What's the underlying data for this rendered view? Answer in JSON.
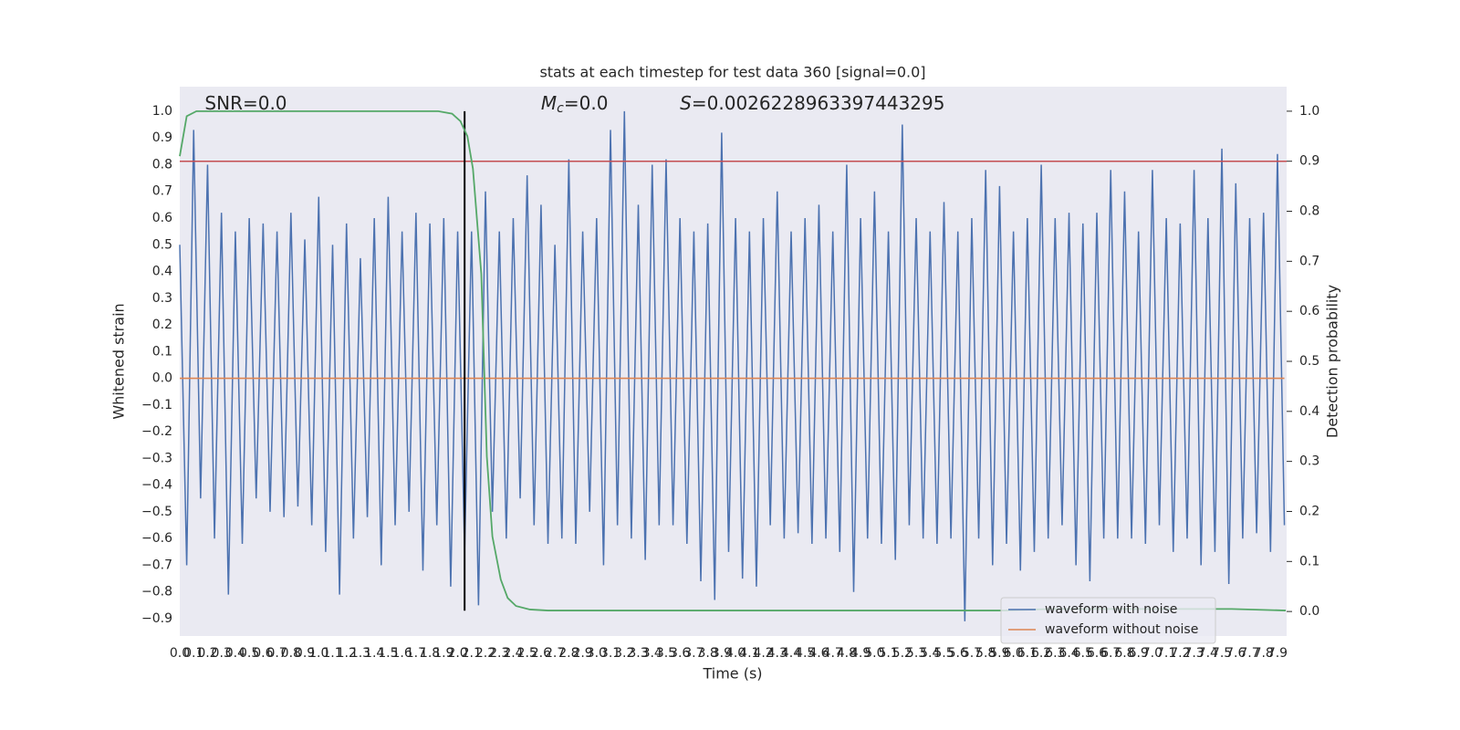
{
  "chart_data": {
    "type": "line",
    "title": "stats at each timestep for test data 360 [signal=0.0]",
    "x_label": "Time (s)",
    "y_label": "Whitened strain",
    "y2_label": "Detection probability",
    "annotations": [
      {
        "text": "SNR=0.0",
        "x": 0.18
      },
      {
        "symbol": "M",
        "subscript": "c",
        "text": "=0.0",
        "x": 2.6
      },
      {
        "symbol": "S",
        "text": "=0.0026228963397443295",
        "x": 3.6
      }
    ],
    "xlim": [
      0,
      7.966
    ],
    "ylim": [
      -0.965,
      1.092
    ],
    "y2lim": [
      -0.049,
      1.049
    ],
    "grid": true,
    "legend": "lower right",
    "x": [
      0,
      0.05,
      0.1,
      0.15,
      0.2,
      0.25,
      0.3,
      0.35,
      0.4,
      0.45,
      0.5,
      0.55,
      0.6,
      0.65,
      0.7,
      0.75,
      0.8,
      0.85,
      0.9,
      0.95,
      1.0,
      1.05,
      1.1,
      1.15,
      1.2,
      1.25,
      1.3,
      1.35,
      1.4,
      1.45,
      1.5,
      1.55,
      1.6,
      1.65,
      1.7,
      1.75,
      1.8,
      1.85,
      1.9,
      1.95,
      2.0,
      2.05,
      2.1,
      2.15,
      2.2,
      2.25,
      2.3,
      2.35,
      2.4,
      2.45,
      2.5,
      2.55,
      2.6,
      2.65,
      2.7,
      2.75,
      2.8,
      2.85,
      2.9,
      2.95,
      3.0,
      3.05,
      3.1,
      3.15,
      3.2,
      3.25,
      3.3,
      3.35,
      3.4,
      3.45,
      3.5,
      3.55,
      3.6,
      3.65,
      3.7,
      3.75,
      3.8,
      3.85,
      3.9,
      3.95,
      4.0,
      4.05,
      4.1,
      4.15,
      4.2,
      4.25,
      4.3,
      4.35,
      4.4,
      4.45,
      4.5,
      4.55,
      4.6,
      4.65,
      4.7,
      4.75,
      4.8,
      4.85,
      4.9,
      4.95,
      5.0,
      5.05,
      5.1,
      5.15,
      5.2,
      5.25,
      5.3,
      5.35,
      5.4,
      5.45,
      5.5,
      5.55,
      5.6,
      5.65,
      5.7,
      5.75,
      5.8,
      5.85,
      5.9,
      5.95,
      6.0,
      6.05,
      6.1,
      6.15,
      6.2,
      6.25,
      6.3,
      6.35,
      6.4,
      6.45,
      6.5,
      6.55,
      6.6,
      6.65,
      6.7,
      6.75,
      6.8,
      6.85,
      6.9,
      6.95,
      7.0,
      7.05,
      7.1,
      7.15,
      7.2,
      7.25,
      7.3,
      7.35,
      7.4,
      7.45,
      7.5,
      7.55,
      7.6,
      7.65,
      7.7,
      7.75,
      7.8,
      7.85,
      7.9,
      7.95
    ],
    "series": [
      {
        "name": "waveform with noise",
        "color": "#4c72b0",
        "values": [
          0.5,
          -0.7,
          0.93,
          -0.45,
          0.8,
          -0.6,
          0.62,
          -0.81,
          0.55,
          -0.62,
          0.6,
          -0.45,
          0.58,
          -0.5,
          0.55,
          -0.52,
          0.62,
          -0.48,
          0.52,
          -0.55,
          0.68,
          -0.65,
          0.5,
          -0.81,
          0.58,
          -0.6,
          0.45,
          -0.52,
          0.6,
          -0.7,
          0.68,
          -0.55,
          0.55,
          -0.5,
          0.62,
          -0.72,
          0.58,
          -0.55,
          0.6,
          -0.78,
          0.55,
          -0.65,
          0.55,
          -0.85,
          0.7,
          -0.5,
          0.55,
          -0.6,
          0.6,
          -0.45,
          0.76,
          -0.55,
          0.65,
          -0.62,
          0.5,
          -0.6,
          0.82,
          -0.62,
          0.55,
          -0.5,
          0.6,
          -0.7,
          0.93,
          -0.55,
          1.0,
          -0.6,
          0.65,
          -0.68,
          0.8,
          -0.55,
          0.82,
          -0.55,
          0.6,
          -0.62,
          0.55,
          -0.76,
          0.58,
          -0.83,
          0.92,
          -0.65,
          0.6,
          -0.75,
          0.55,
          -0.78,
          0.6,
          -0.55,
          0.7,
          -0.6,
          0.55,
          -0.58,
          0.6,
          -0.62,
          0.65,
          -0.6,
          0.55,
          -0.65,
          0.8,
          -0.8,
          0.6,
          -0.6,
          0.7,
          -0.62,
          0.55,
          -0.68,
          0.95,
          -0.55,
          0.6,
          -0.6,
          0.55,
          -0.62,
          0.66,
          -0.6,
          0.55,
          -0.91,
          0.6,
          -0.6,
          0.78,
          -0.7,
          0.72,
          -0.62,
          0.55,
          -0.72,
          0.6,
          -0.65,
          0.8,
          -0.6,
          0.6,
          -0.55,
          0.62,
          -0.7,
          0.58,
          -0.76,
          0.62,
          -0.6,
          0.78,
          -0.6,
          0.7,
          -0.6,
          0.55,
          -0.62,
          0.78,
          -0.55,
          0.6,
          -0.65,
          0.58,
          -0.6,
          0.78,
          -0.7,
          0.6,
          -0.65,
          0.86,
          -0.77,
          0.73,
          -0.6,
          0.6,
          -0.58,
          0.62,
          -0.65,
          0.84,
          -0.55
        ]
      },
      {
        "name": "waveform without noise",
        "color": "#dd8452",
        "values": [
          0,
          0,
          0,
          0,
          0,
          0,
          0,
          0,
          0,
          0,
          0,
          0,
          0,
          0,
          0,
          0,
          0,
          0,
          0,
          0,
          0,
          0,
          0,
          0,
          0,
          0,
          0,
          0,
          0,
          0,
          0,
          0,
          0,
          0,
          0,
          0,
          0,
          0,
          0,
          0,
          0,
          0,
          0,
          0,
          0,
          0,
          0,
          0,
          0,
          0,
          0,
          0,
          0,
          0,
          0,
          0,
          0,
          0,
          0,
          0,
          0,
          0,
          0,
          0,
          0,
          0,
          0,
          0,
          0,
          0,
          0,
          0,
          0,
          0,
          0,
          0,
          0,
          0,
          0,
          0,
          0,
          0,
          0,
          0,
          0,
          0,
          0,
          0,
          0,
          0,
          0,
          0,
          0,
          0,
          0,
          0,
          0,
          0,
          0,
          0,
          0,
          0,
          0,
          0,
          0,
          0,
          0,
          0,
          0,
          0,
          0,
          0,
          0,
          0,
          0,
          0,
          0,
          0,
          0,
          0,
          0,
          0,
          0,
          0,
          0,
          0,
          0,
          0,
          0,
          0,
          0,
          0,
          0,
          0,
          0,
          0,
          0,
          0,
          0,
          0,
          0,
          0,
          0,
          0,
          0,
          0,
          0,
          0,
          0,
          0,
          0,
          0,
          0,
          0,
          0,
          0,
          0,
          0,
          0,
          0
        ]
      }
    ],
    "probability": {
      "axis": "y2",
      "color": "#55a868",
      "x": [
        0,
        0.05,
        0.12,
        1.86,
        1.96,
        2.02,
        2.07,
        2.11,
        2.17,
        2.21,
        2.25,
        2.31,
        2.36,
        2.42,
        2.52,
        2.65,
        5.93,
        6.26,
        7.57,
        7.96
      ],
      "values": [
        0.91,
        0.99,
        1.0,
        1.0,
        0.995,
        0.98,
        0.95,
        0.885,
        0.675,
        0.31,
        0.15,
        0.064,
        0.027,
        0.011,
        0.004,
        0.002,
        0.002,
        0.005,
        0.005,
        0.002
      ]
    },
    "hline": {
      "axis": "y2",
      "y": 0.9,
      "color": "#c44e52"
    },
    "vline": {
      "x": 2.05,
      "ymin": -0.87,
      "ymax": 1.0,
      "color": "#000000"
    },
    "xticks": [
      {
        "value": 0,
        "label": "0.0"
      },
      {
        "value": 0.1,
        "label": "0.1"
      },
      {
        "value": 0.2,
        "label": "0.2"
      },
      {
        "value": 0.3,
        "label": "0.3"
      },
      {
        "value": 0.4,
        "label": "0.4"
      },
      {
        "value": 0.5,
        "label": "0.5"
      },
      {
        "value": 0.6,
        "label": "0.6"
      },
      {
        "value": 0.7,
        "label": "0.7"
      },
      {
        "value": 0.8,
        "label": "0.8"
      },
      {
        "value": 0.9,
        "label": "0.9"
      },
      {
        "value": 1.0,
        "label": "1.0"
      },
      {
        "value": 1.1,
        "label": "1.1"
      },
      {
        "value": 1.2,
        "label": "1.2"
      },
      {
        "value": 1.3,
        "label": "1.3"
      },
      {
        "value": 1.4,
        "label": "1.4"
      },
      {
        "value": 1.5,
        "label": "1.5"
      },
      {
        "value": 1.6,
        "label": "1.6"
      },
      {
        "value": 1.7,
        "label": "1.7"
      },
      {
        "value": 1.8,
        "label": "1.8"
      },
      {
        "value": 1.9,
        "label": "1.9"
      },
      {
        "value": 2.0,
        "label": "2.0"
      },
      {
        "value": 2.1,
        "label": "2.1"
      },
      {
        "value": 2.2,
        "label": "2.2"
      },
      {
        "value": 2.3,
        "label": "2.3"
      },
      {
        "value": 2.4,
        "label": "2.4"
      },
      {
        "value": 2.5,
        "label": "2.5"
      },
      {
        "value": 2.6,
        "label": "2.6"
      },
      {
        "value": 2.7,
        "label": "2.7"
      },
      {
        "value": 2.8,
        "label": "2.8"
      },
      {
        "value": 2.9,
        "label": "2.9"
      },
      {
        "value": 3.0,
        "label": "3.0"
      },
      {
        "value": 3.1,
        "label": "3.1"
      },
      {
        "value": 3.2,
        "label": "3.2"
      },
      {
        "value": 3.3,
        "label": "3.3"
      },
      {
        "value": 3.4,
        "label": "3.4"
      },
      {
        "value": 3.5,
        "label": "3.5"
      },
      {
        "value": 3.6,
        "label": "3.6"
      },
      {
        "value": 3.7,
        "label": "3.7"
      },
      {
        "value": 3.8,
        "label": "3.8"
      },
      {
        "value": 3.9,
        "label": "3.9"
      },
      {
        "value": 4.0,
        "label": "4.0"
      },
      {
        "value": 4.1,
        "label": "4.1"
      },
      {
        "value": 4.2,
        "label": "4.2"
      },
      {
        "value": 4.3,
        "label": "4.3"
      },
      {
        "value": 4.4,
        "label": "4.4"
      },
      {
        "value": 4.5,
        "label": "4.5"
      },
      {
        "value": 4.6,
        "label": "4.6"
      },
      {
        "value": 4.7,
        "label": "4.7"
      },
      {
        "value": 4.8,
        "label": "4.8"
      },
      {
        "value": 4.9,
        "label": "4.9"
      },
      {
        "value": 5.0,
        "label": "5.0"
      },
      {
        "value": 5.1,
        "label": "5.1"
      },
      {
        "value": 5.2,
        "label": "5.2"
      },
      {
        "value": 5.3,
        "label": "5.3"
      },
      {
        "value": 5.4,
        "label": "5.4"
      },
      {
        "value": 5.5,
        "label": "5.5"
      },
      {
        "value": 5.6,
        "label": "5.6"
      },
      {
        "value": 5.7,
        "label": "5.7"
      },
      {
        "value": 5.8,
        "label": "5.8"
      },
      {
        "value": 5.9,
        "label": "5.9"
      },
      {
        "value": 6.0,
        "label": "6.0"
      },
      {
        "value": 6.1,
        "label": "6.1"
      },
      {
        "value": 6.2,
        "label": "6.2"
      },
      {
        "value": 6.3,
        "label": "6.3"
      },
      {
        "value": 6.4,
        "label": "6.4"
      },
      {
        "value": 6.5,
        "label": "6.5"
      },
      {
        "value": 6.6,
        "label": "6.6"
      },
      {
        "value": 6.7,
        "label": "6.7"
      },
      {
        "value": 6.8,
        "label": "6.8"
      },
      {
        "value": 6.9,
        "label": "6.9"
      },
      {
        "value": 7.0,
        "label": "7.0"
      },
      {
        "value": 7.1,
        "label": "7.1"
      },
      {
        "value": 7.2,
        "label": "7.2"
      },
      {
        "value": 7.3,
        "label": "7.3"
      },
      {
        "value": 7.4,
        "label": "7.4"
      },
      {
        "value": 7.5,
        "label": "7.5"
      },
      {
        "value": 7.6,
        "label": "7.6"
      },
      {
        "value": 7.7,
        "label": "7.7"
      },
      {
        "value": 7.8,
        "label": "7.8"
      },
      {
        "value": 7.9,
        "label": "7.9"
      }
    ],
    "yticks": [
      {
        "value": -0.9,
        "label": "−0.9"
      },
      {
        "value": -0.8,
        "label": "−0.8"
      },
      {
        "value": -0.7,
        "label": "−0.7"
      },
      {
        "value": -0.6,
        "label": "−0.6"
      },
      {
        "value": -0.5,
        "label": "−0.5"
      },
      {
        "value": -0.4,
        "label": "−0.4"
      },
      {
        "value": -0.3,
        "label": "−0.3"
      },
      {
        "value": -0.2,
        "label": "−0.2"
      },
      {
        "value": -0.1,
        "label": "−0.1"
      },
      {
        "value": 0,
        "label": "0.0"
      },
      0.1,
      0.2,
      0.3,
      0.4,
      0.5,
      0.6,
      0.7,
      0.8,
      0.9,
      {
        "value": 1.0,
        "label": "1.0"
      }
    ],
    "y2ticks": [
      {
        "value": 0,
        "label": "0.0"
      },
      0.1,
      0.2,
      0.3,
      0.4,
      0.5,
      0.6,
      0.7,
      0.8,
      0.9,
      {
        "value": 1.0,
        "label": "1.0"
      }
    ]
  }
}
